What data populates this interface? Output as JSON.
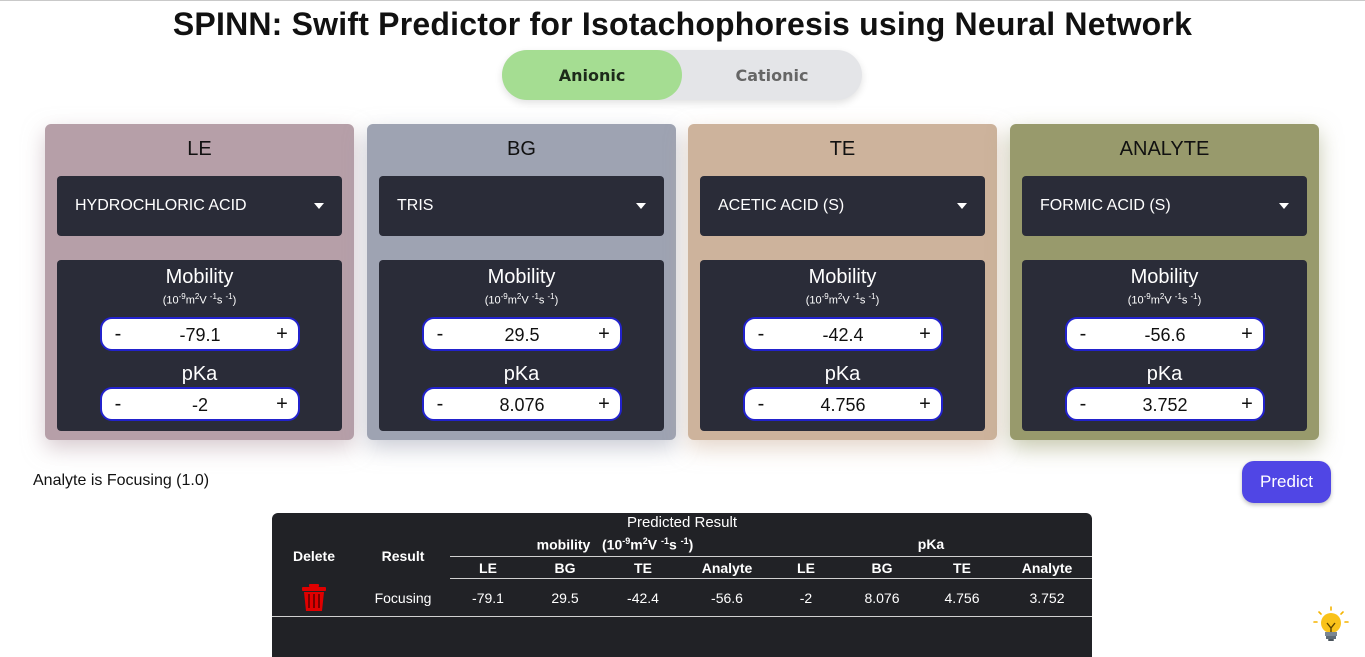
{
  "title": "SPINN: Swift Predictor for Isotachophoresis using Neural Network",
  "mode_toggle": {
    "options": [
      "Anionic",
      "Cationic"
    ],
    "active": "Anionic"
  },
  "cards": [
    {
      "heading": "LE",
      "color": "#b69fa8",
      "selected": "HYDROCHLORIC ACID",
      "mobility": "-79.1",
      "pka": "-2"
    },
    {
      "heading": "BG",
      "color": "#9ea3b2",
      "selected": "TRIS",
      "mobility": "29.5",
      "pka": "8.076"
    },
    {
      "heading": "TE",
      "color": "#cdb39c",
      "selected": "ACETIC ACID (S)",
      "mobility": "-42.4",
      "pka": "4.756"
    },
    {
      "heading": "ANALYTE",
      "color": "#989a6c",
      "selected": "FORMIC ACID (S)",
      "mobility": "-56.6",
      "pka": "3.752"
    }
  ],
  "mobility_label": "Mobility",
  "pka_label": "pKa",
  "stepper": {
    "minus": "-",
    "plus": "+"
  },
  "status_text": "Analyte is Focusing (1.0)",
  "predict_label": "Predict",
  "result_table": {
    "title": "Predicted Result",
    "col_delete": "Delete",
    "col_result": "Result",
    "group_mobility": "mobility",
    "group_pka": "pKa",
    "sub_columns": [
      "LE",
      "BG",
      "TE",
      "Analyte",
      "LE",
      "BG",
      "TE",
      "Analyte"
    ],
    "rows": [
      {
        "result": "Focusing",
        "values": [
          "-79.1",
          "29.5",
          "-42.4",
          "-56.6",
          "-2",
          "8.076",
          "4.756",
          "3.752"
        ]
      }
    ]
  },
  "icons": {
    "delete": "trash-icon",
    "help": "lightbulb-icon",
    "dropdown": "caret-down-icon"
  },
  "colors": {
    "accent": "#5046e5",
    "toggle_active": "#a5dd92",
    "delete": "#e00000",
    "panel": "#2a2c38"
  }
}
